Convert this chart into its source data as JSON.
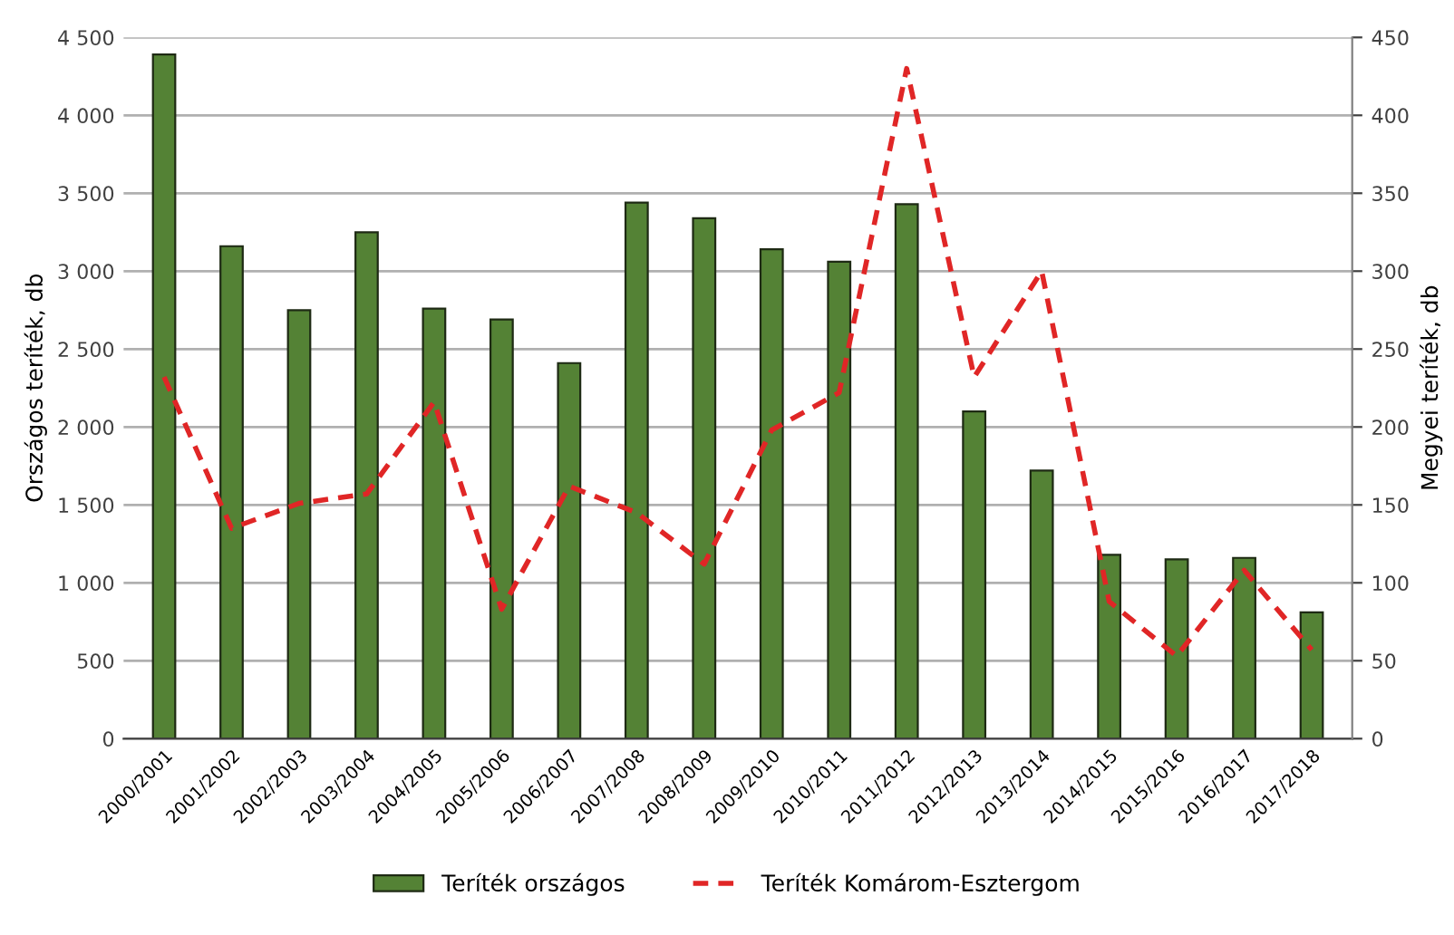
{
  "chart_data": {
    "type": "bar",
    "ylabel": "Országos teríték, db",
    "y2label": "Megyei teríték, db",
    "categories": [
      "2000/2001",
      "2001/2002",
      "2002/2003",
      "2003/2004",
      "2004/2005",
      "2005/2006",
      "2006/2007",
      "2007/2008",
      "2008/2009",
      "2009/2010",
      "2010/2011",
      "2011/2012",
      "2012/2013",
      "2013/2014",
      "2014/2015",
      "2015/2016",
      "2016/2017",
      "2017/2018"
    ],
    "series": [
      {
        "name": "Teríték országos",
        "color": "#548235",
        "values": [
          4390,
          3160,
          2750,
          3250,
          2760,
          2690,
          2410,
          3440,
          3340,
          3140,
          3060,
          3430,
          2100,
          1720,
          1180,
          1150,
          1160,
          810
        ]
      },
      {
        "name": "Teríték Komárom-Esztergom",
        "type": "line",
        "axis": "y2",
        "color": "#e02626",
        "line_style": "dashed",
        "values": [
          232,
          135,
          151,
          157,
          216,
          83,
          162,
          145,
          112,
          198,
          222,
          430,
          232,
          300,
          88,
          53,
          108,
          57
        ]
      }
    ],
    "ylim": [
      0,
      4500
    ],
    "yticks": [
      0,
      {
        "value": 500,
        "label": "500"
      },
      {
        "value": 1000,
        "label": "1 000"
      },
      {
        "value": 1500,
        "label": "1 500"
      },
      {
        "value": 2000,
        "label": "2 000"
      },
      {
        "value": 2500,
        "label": "2 500"
      },
      {
        "value": 3000,
        "label": "3 000"
      },
      {
        "value": 3500,
        "label": "3 500"
      },
      {
        "value": 4000,
        "label": "4 000"
      },
      {
        "value": 4500,
        "label": "4 500"
      }
    ],
    "y2lim": [
      0,
      450
    ],
    "y2ticks": [
      0,
      50,
      100,
      150,
      200,
      250,
      300,
      350,
      400,
      450
    ],
    "grid": "y",
    "legend": "bottom",
    "marker": "none"
  }
}
